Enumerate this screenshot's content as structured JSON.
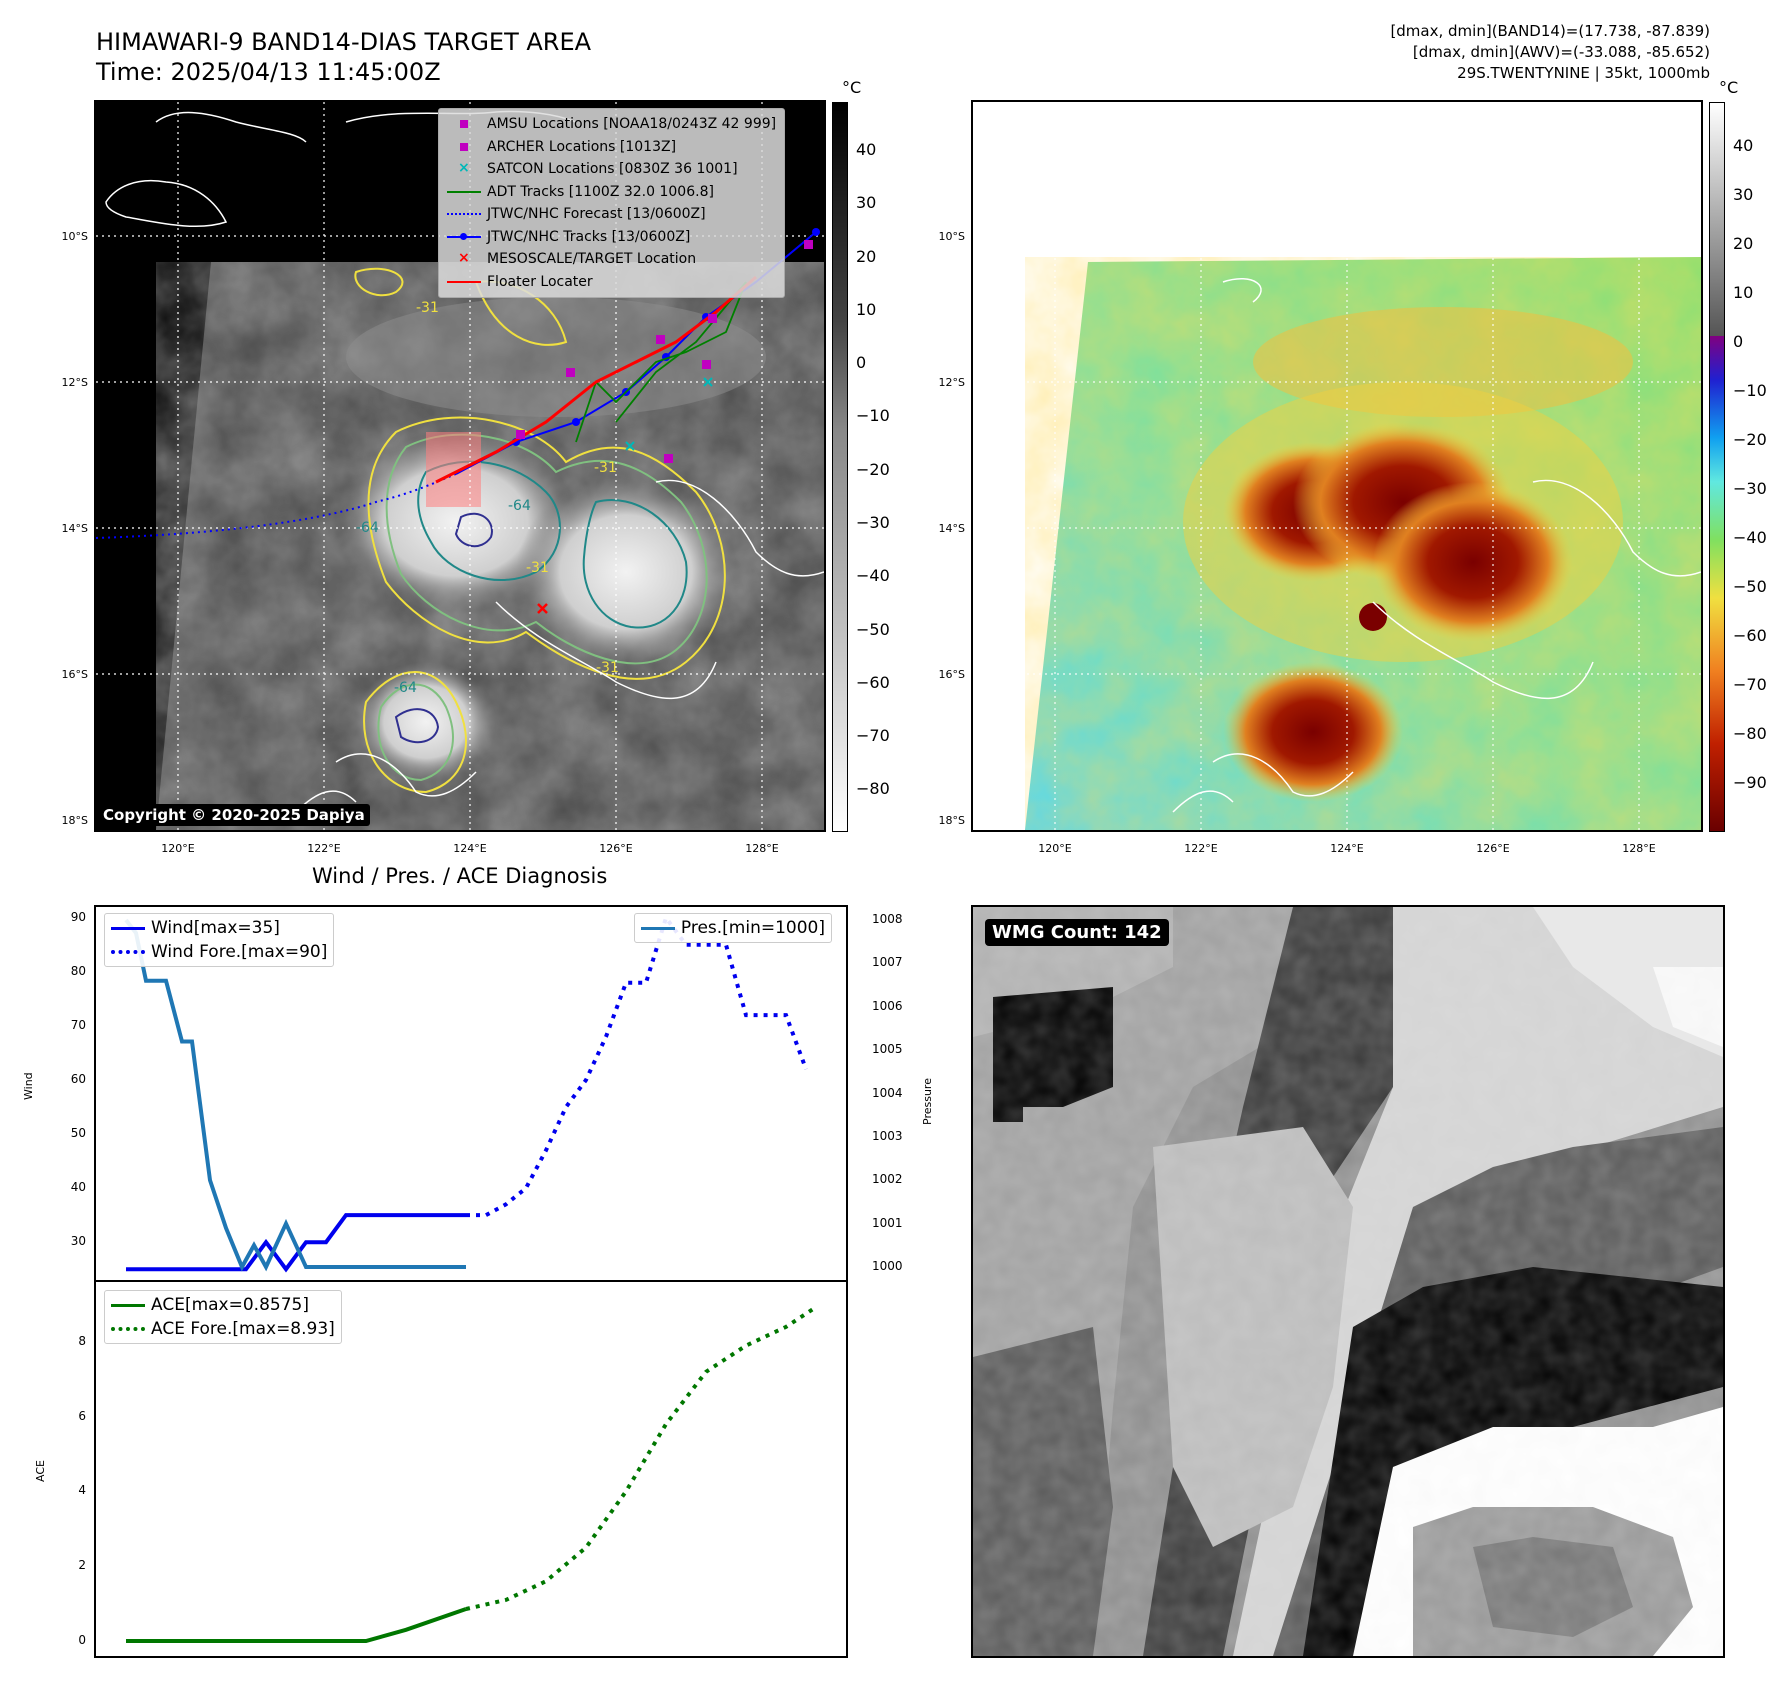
{
  "header": {
    "title_line1": "HIMAWARI-9 BAND14-DIAS TARGET AREA",
    "title_line2": "Time: 2025/04/13 11:45:00Z",
    "right_line1": "[dmax, dmin](BAND14)=(17.738, -87.839)",
    "right_line2": "[dmax, dmin](AWV)=(-33.088, -85.652)",
    "right_line3": "29S.TWENTYNINE | 35kt, 1000mb"
  },
  "map": {
    "lat_labels": [
      "10°S",
      "12°S",
      "14°S",
      "16°S",
      "18°S"
    ],
    "lon_labels": [
      "120°E",
      "122°E",
      "124°E",
      "126°E",
      "128°E"
    ],
    "copyright": "Copyright © 2020-2025 Dapiya",
    "contour_labels": [
      "-31",
      "-64",
      "-64",
      "-31",
      "-31",
      "-31",
      "-64"
    ],
    "legend": [
      {
        "label": "AMSU Locations [NOAA18/0243Z 42 999]",
        "symbol": "square",
        "color": "#c000c0"
      },
      {
        "label": "ARCHER Locations [1013Z]",
        "symbol": "square",
        "color": "#c000c0"
      },
      {
        "label": "SATCON Locations [0830Z 36 1001]",
        "symbol": "x",
        "color": "#00b8b8"
      },
      {
        "label": "ADT Tracks [1100Z 32.0 1006.8]",
        "symbol": "line",
        "color": "#008000"
      },
      {
        "label": "JTWC/NHC Forecast [13/0600Z]",
        "symbol": "dotted",
        "color": "#0000ff"
      },
      {
        "label": "JTWC/NHC Tracks [13/0600Z]",
        "symbol": "line-dot",
        "color": "#0000ff"
      },
      {
        "label": "MESOSCALE/TARGET Location",
        "symbol": "x",
        "color": "#ff0000"
      },
      {
        "label": "Floater Locater",
        "symbol": "line",
        "color": "#ff0000"
      }
    ]
  },
  "colorbar_left": {
    "unit": "°C",
    "ticks": [
      "40",
      "30",
      "20",
      "10",
      "0",
      "−10",
      "−20",
      "−30",
      "−40",
      "−50",
      "−60",
      "−70",
      "−80"
    ]
  },
  "colorbar_right": {
    "unit": "°C",
    "ticks": [
      "40",
      "30",
      "20",
      "10",
      "0",
      "−10",
      "−20",
      "−30",
      "−40",
      "−50",
      "−60",
      "−70",
      "−80",
      "−90"
    ]
  },
  "diagnosis_title": "Wind / Pres. / ACE Diagnosis",
  "wmg": {
    "badge": "WMG Count: 142"
  },
  "chart_data": [
    {
      "type": "line",
      "title": "Wind / Pres. / ACE Diagnosis",
      "ylabel": "Wind",
      "ylabel_right": "Pressure",
      "ylim": [
        23,
        92
      ],
      "ylim_right": [
        999.7,
        1008.3
      ],
      "yticks": [
        "30",
        "40",
        "50",
        "60",
        "70",
        "80",
        "90"
      ],
      "yticks_right": [
        "1000",
        "1001",
        "1002",
        "1003",
        "1004",
        "1005",
        "1006",
        "1007",
        "1008"
      ],
      "legend_left": [
        "Wind[max=35]",
        "Wind Fore.[max=90]"
      ],
      "legend_right": [
        "Pres.[min=1000]"
      ],
      "series": [
        {
          "name": "Wind[max=35]",
          "axis": "left",
          "style": "solid",
          "color": "#0000ee",
          "x": [
            0,
            1,
            2,
            3,
            4,
            5,
            6,
            7,
            8,
            9,
            10,
            11,
            12,
            13,
            14,
            15,
            16,
            17
          ],
          "y": [
            25,
            25,
            25,
            25,
            25,
            25,
            25,
            30,
            25,
            30,
            30,
            35,
            35,
            35,
            35,
            35,
            35,
            35
          ]
        },
        {
          "name": "Wind Fore.[max=90]",
          "axis": "left",
          "style": "dotted",
          "color": "#0000ee",
          "x": [
            17,
            18,
            19,
            20,
            21,
            22,
            23,
            24,
            25,
            26,
            27,
            28,
            29,
            30,
            31,
            32,
            33,
            34
          ],
          "y": [
            35,
            35,
            37,
            40,
            47,
            55,
            60,
            68,
            78,
            78,
            90,
            85,
            85,
            85,
            72,
            72,
            72,
            62
          ]
        },
        {
          "name": "Pres.[min=1000]",
          "axis": "right",
          "style": "solid",
          "color": "#1f77b4",
          "x": [
            0,
            0.5,
            1,
            1.5,
            2,
            2.8,
            3.3,
            4.2,
            5,
            5.8,
            6.4,
            7,
            7.5,
            8,
            8.5,
            9,
            10,
            11,
            12,
            13,
            14,
            15,
            16,
            17
          ],
          "y": [
            1008,
            1007.7,
            1006.6,
            1006.6,
            1006.6,
            1005.2,
            1005.2,
            1002,
            1000.9,
            1000,
            1000.5,
            1000,
            1000.5,
            1001,
            1000.5,
            1000,
            1000,
            1000,
            1000,
            1000,
            1000,
            1000,
            1000,
            1000
          ]
        }
      ]
    },
    {
      "type": "line",
      "ylabel": "ACE",
      "ylim": [
        -0.4,
        9.6
      ],
      "yticks": [
        "0",
        "2",
        "4",
        "6",
        "8"
      ],
      "legend": [
        "ACE[max=0.8575]",
        "ACE Fore.[max=8.93]"
      ],
      "series": [
        {
          "name": "ACE[max=0.8575]",
          "style": "solid",
          "color": "#007700",
          "x": [
            0,
            4,
            8,
            10,
            12,
            14,
            17
          ],
          "y": [
            0,
            0,
            0,
            0,
            0,
            0.3,
            0.8575
          ]
        },
        {
          "name": "ACE Fore.[max=8.93]",
          "style": "dotted",
          "color": "#007700",
          "x": [
            17,
            19,
            21,
            23,
            25,
            27,
            29,
            31,
            33,
            34.5
          ],
          "y": [
            0.8575,
            1.1,
            1.6,
            2.5,
            4.0,
            5.8,
            7.2,
            7.9,
            8.4,
            8.93
          ]
        }
      ]
    }
  ]
}
